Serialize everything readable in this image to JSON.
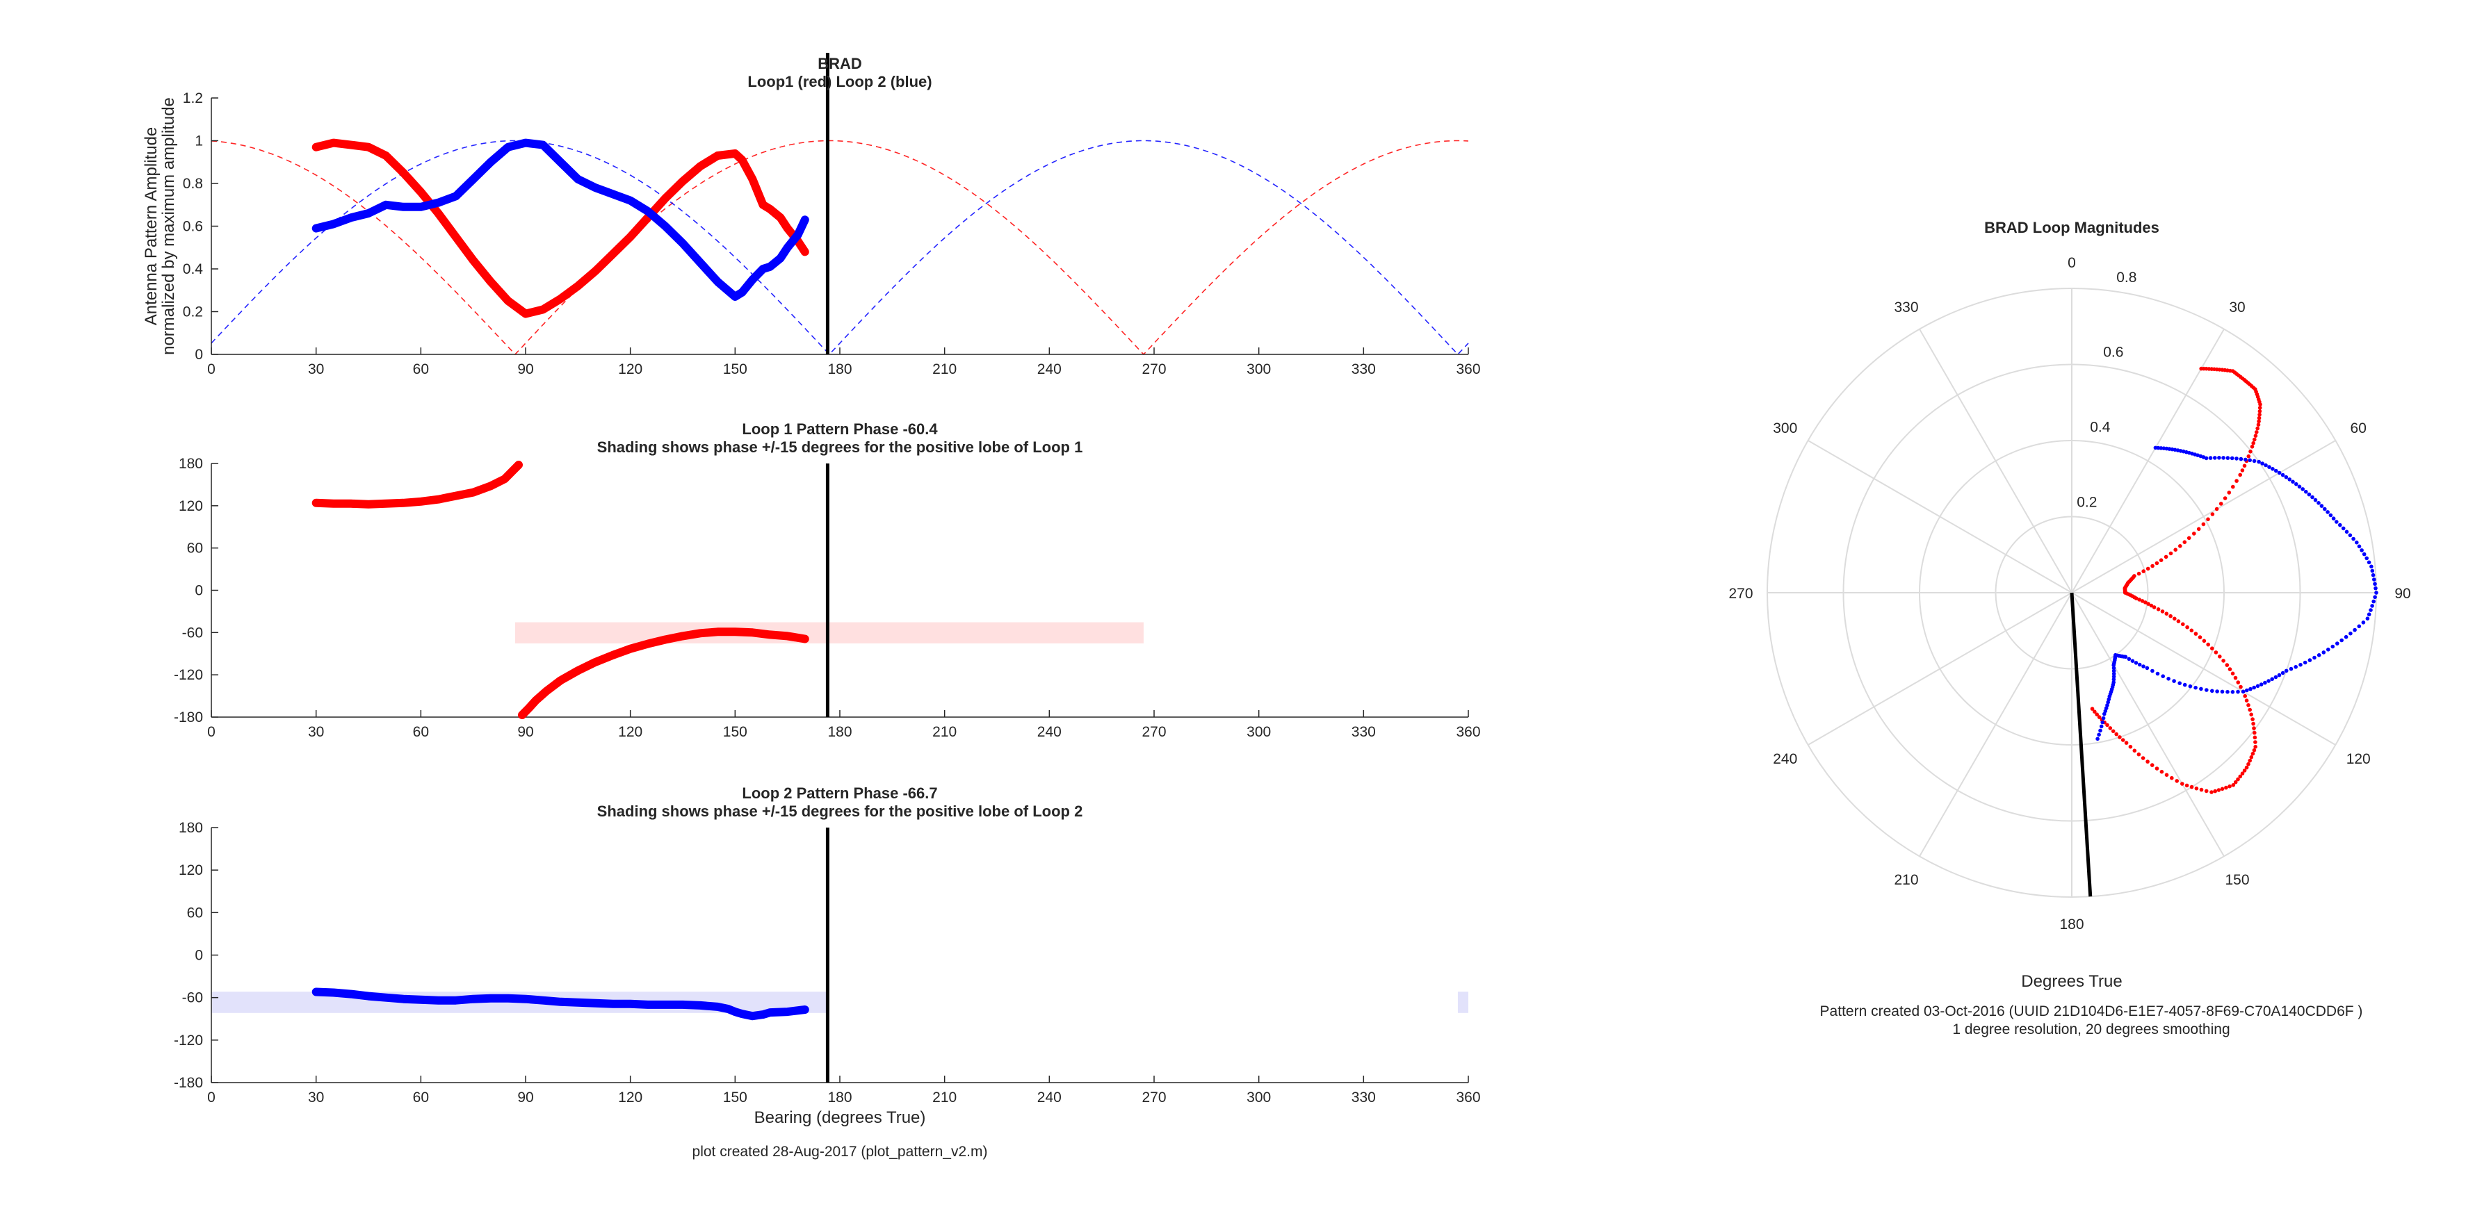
{
  "figure_note": "plot created 28-Aug-2017 (plot_pattern_v2.m)",
  "pattern_note_1": "Pattern created 03-Oct-2016 (UUID 21D104D6-E1E7-4057-8F69-C70A140CDD6F )",
  "pattern_note_2": "1 degree resolution, 20 degrees smoothing",
  "colors": {
    "loop1": "#ff0000",
    "loop2": "#0000ff",
    "shade1": "#ffe0e0",
    "shade2": "#e2e2fb",
    "axes": "#262626",
    "grid": "#dcdcdc",
    "marker": "#000000"
  },
  "chart_data": [
    {
      "type": "line",
      "title": "BRAD",
      "subtitle": "Loop1 (red) Loop 2 (blue)",
      "xlabel": "",
      "ylabel": "Antenna Pattern Amplitude",
      "ylabel2": "normalized by maximum amplitude",
      "xlim": [
        0,
        360
      ],
      "ylim": [
        0,
        1.2
      ],
      "xticks": [
        0,
        30,
        60,
        90,
        120,
        150,
        180,
        210,
        240,
        270,
        300,
        330,
        360
      ],
      "yticks": [
        0,
        0.2,
        0.4,
        0.6,
        0.8,
        1,
        1.2
      ],
      "ytick_labels": [
        "0",
        "0.2",
        "0.4",
        "0.6",
        "0.8",
        "1",
        "1.2"
      ],
      "marker_bearing": 176.5,
      "ideal_curves": [
        {
          "series": "loop1",
          "function": "abs_cos",
          "peak_bearing": 177,
          "style": "dashed"
        },
        {
          "series": "loop2",
          "function": "abs_sin",
          "peak_bearing": 87,
          "style": "dashed"
        }
      ],
      "series": [
        {
          "key": "loop1",
          "color": "#ff0000",
          "x": [
            30,
            35,
            40,
            45,
            50,
            55,
            60,
            65,
            70,
            75,
            80,
            85,
            90,
            95,
            100,
            105,
            110,
            115,
            120,
            125,
            130,
            135,
            140,
            145,
            150,
            152,
            155,
            158,
            160,
            163,
            165,
            168,
            170
          ],
          "y": [
            0.97,
            0.99,
            0.98,
            0.97,
            0.93,
            0.85,
            0.76,
            0.66,
            0.55,
            0.44,
            0.34,
            0.25,
            0.19,
            0.21,
            0.26,
            0.32,
            0.39,
            0.47,
            0.55,
            0.64,
            0.73,
            0.81,
            0.88,
            0.93,
            0.94,
            0.91,
            0.82,
            0.7,
            0.68,
            0.64,
            0.59,
            0.53,
            0.48
          ]
        },
        {
          "key": "loop2",
          "color": "#0000ff",
          "x": [
            30,
            35,
            40,
            45,
            50,
            55,
            60,
            65,
            70,
            75,
            80,
            85,
            90,
            95,
            100,
            105,
            110,
            115,
            120,
            125,
            130,
            135,
            140,
            145,
            150,
            152,
            155,
            158,
            160,
            163,
            165,
            168,
            170
          ],
          "y": [
            0.59,
            0.61,
            0.64,
            0.66,
            0.7,
            0.69,
            0.69,
            0.71,
            0.74,
            0.82,
            0.9,
            0.97,
            0.99,
            0.98,
            0.9,
            0.82,
            0.78,
            0.75,
            0.72,
            0.67,
            0.6,
            0.52,
            0.43,
            0.34,
            0.27,
            0.29,
            0.35,
            0.4,
            0.41,
            0.45,
            0.5,
            0.56,
            0.63
          ]
        }
      ]
    },
    {
      "type": "scatter",
      "title": "Loop 1 Pattern Phase -60.4",
      "subtitle": "Shading shows phase +/-15 degrees for the positive lobe of Loop 1",
      "xlim": [
        0,
        360
      ],
      "ylim": [
        -180,
        180
      ],
      "xticks": [
        0,
        30,
        60,
        90,
        120,
        150,
        180,
        210,
        240,
        270,
        300,
        330,
        360
      ],
      "yticks": [
        -180,
        -120,
        -60,
        0,
        60,
        120,
        180
      ],
      "marker_bearing": 176.5,
      "shading": [
        {
          "x_range": [
            87,
            267
          ],
          "y_range": [
            -75.4,
            -45.4
          ],
          "color": "#ffe0e0"
        }
      ],
      "series": [
        {
          "key": "loop1",
          "color": "#ff0000",
          "segments": [
            {
              "x": [
                30,
                35,
                40,
                45,
                50,
                55,
                60,
                65,
                70,
                75,
                80,
                84,
                86,
                88
              ],
              "y": [
                124,
                123,
                123,
                122,
                123,
                124,
                126,
                129,
                134,
                139,
                148,
                158,
                168,
                178
              ]
            },
            {
              "x": [
                89,
                91,
                93,
                96,
                100,
                105,
                110,
                115,
                120,
                125,
                130,
                135,
                140,
                145,
                150,
                155,
                160,
                165,
                170
              ],
              "y": [
                -177,
                -167,
                -156,
                -143,
                -128,
                -114,
                -102,
                -92,
                -83,
                -76,
                -70,
                -65,
                -61,
                -59,
                -59,
                -60,
                -63,
                -65,
                -69
              ]
            }
          ]
        }
      ]
    },
    {
      "type": "scatter",
      "title": "Loop 2 Pattern Phase -66.7",
      "subtitle": "Shading shows phase +/-15 degrees for the positive lobe of Loop 2",
      "xlabel": "Bearing (degrees True)",
      "xlim": [
        0,
        360
      ],
      "ylim": [
        -180,
        180
      ],
      "xticks": [
        0,
        30,
        60,
        90,
        120,
        150,
        180,
        210,
        240,
        270,
        300,
        330,
        360
      ],
      "yticks": [
        -180,
        -120,
        -60,
        0,
        60,
        120,
        180
      ],
      "marker_bearing": 176.5,
      "shading": [
        {
          "x_range": [
            0,
            177
          ],
          "y_range": [
            -81.7,
            -51.7
          ],
          "color": "#e2e2fb"
        },
        {
          "x_range": [
            357,
            360
          ],
          "y_range": [
            -81.7,
            -51.7
          ],
          "color": "#e2e2fb"
        }
      ],
      "series": [
        {
          "key": "loop2",
          "color": "#0000ff",
          "segments": [
            {
              "x": [
                30,
                35,
                40,
                45,
                50,
                55,
                60,
                65,
                70,
                75,
                80,
                85,
                90,
                95,
                100,
                105,
                110,
                115,
                120,
                125,
                130,
                135,
                140,
                145,
                148,
                150,
                152,
                155,
                158,
                160,
                165,
                170
              ],
              "y": [
                -52,
                -53,
                -55,
                -58,
                -60,
                -62,
                -63,
                -64,
                -64,
                -62,
                -61,
                -61,
                -62,
                -64,
                -66,
                -67,
                -68,
                -69,
                -69,
                -70,
                -70,
                -70,
                -71,
                -73,
                -76,
                -80,
                -83,
                -86,
                -84,
                -81,
                -80,
                -77
              ]
            }
          ]
        }
      ]
    },
    {
      "type": "polar",
      "title": "BRAD Loop Magnitudes",
      "xlabel": "Degrees True",
      "rlim": [
        0,
        0.8
      ],
      "rticks": [
        0.2,
        0.4,
        0.6,
        0.8
      ],
      "theta_ticks": [
        0,
        30,
        60,
        90,
        120,
        150,
        180,
        210,
        240,
        270,
        300,
        330
      ],
      "marker": {
        "bearing": 176.5,
        "radius": 0.8
      },
      "series": [
        {
          "key": "loop1",
          "color": "#ff0000",
          "theta": [
            30,
            33,
            36,
            39,
            42,
            45,
            48,
            51,
            55,
            60,
            65,
            70,
            75,
            80,
            85,
            90,
            95,
            100,
            105,
            110,
            115,
            120,
            125,
            130,
            135,
            140,
            145,
            150,
            155,
            160,
            165,
            170
          ],
          "r": [
            0.68,
            0.7,
            0.72,
            0.72,
            0.72,
            0.7,
            0.66,
            0.61,
            0.54,
            0.44,
            0.34,
            0.25,
            0.17,
            0.15,
            0.14,
            0.14,
            0.17,
            0.22,
            0.29,
            0.37,
            0.45,
            0.52,
            0.58,
            0.63,
            0.65,
            0.66,
            0.64,
            0.58,
            0.5,
            0.42,
            0.36,
            0.31
          ]
        },
        {
          "key": "loop2",
          "color": "#0000ff",
          "theta": [
            30,
            35,
            40,
            45,
            50,
            55,
            60,
            65,
            70,
            75,
            80,
            85,
            90,
            95,
            100,
            105,
            110,
            115,
            120,
            125,
            130,
            135,
            140,
            145,
            150,
            155,
            160,
            165,
            170
          ],
          "r": [
            0.44,
            0.46,
            0.48,
            0.5,
            0.55,
            0.6,
            0.63,
            0.66,
            0.69,
            0.72,
            0.76,
            0.79,
            0.8,
            0.78,
            0.72,
            0.66,
            0.6,
            0.56,
            0.52,
            0.45,
            0.37,
            0.28,
            0.22,
            0.2,
            0.22,
            0.26,
            0.29,
            0.33,
            0.39
          ]
        }
      ]
    }
  ]
}
